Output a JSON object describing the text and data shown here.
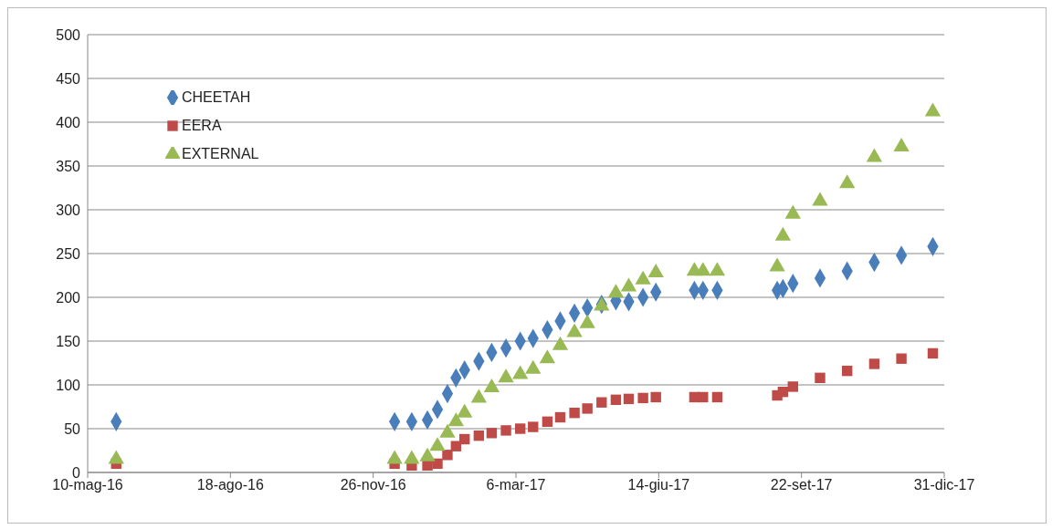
{
  "chart_data": {
    "type": "scatter",
    "x": [
      "2016-05-30",
      "2016-12-11",
      "2016-12-23",
      "2017-01-03",
      "2017-01-10",
      "2017-01-17",
      "2017-01-23",
      "2017-01-29",
      "2017-02-08",
      "2017-02-17",
      "2017-02-27",
      "2017-03-09",
      "2017-03-18",
      "2017-03-28",
      "2017-04-06",
      "2017-04-16",
      "2017-04-25",
      "2017-05-05",
      "2017-05-15",
      "2017-05-24",
      "2017-06-03",
      "2017-06-12",
      "2017-07-09",
      "2017-07-15",
      "2017-07-25",
      "2017-09-05",
      "2017-09-09",
      "2017-09-16",
      "2017-10-05",
      "2017-10-24",
      "2017-11-12",
      "2017-12-01",
      "2017-12-23"
    ],
    "series": [
      {
        "name": "CHEETAH",
        "color": "#4a7ebb",
        "marker": "diamond",
        "values": [
          58,
          58,
          58,
          60,
          72,
          90,
          108,
          117,
          127,
          137,
          142,
          150,
          153,
          163,
          173,
          182,
          188,
          192,
          196,
          195,
          200,
          206,
          208,
          208,
          208,
          208,
          210,
          216,
          222,
          230,
          240,
          248,
          258
        ]
      },
      {
        "name": "EERA",
        "color": "#be4b48",
        "marker": "square",
        "values": [
          10,
          10,
          8,
          8,
          10,
          20,
          30,
          38,
          42,
          45,
          48,
          50,
          52,
          58,
          63,
          68,
          73,
          80,
          83,
          84,
          85,
          86,
          86,
          86,
          86,
          88,
          92,
          98,
          108,
          116,
          124,
          130,
          136
        ]
      },
      {
        "name": "EXTERNAL",
        "color": "#98b954",
        "marker": "triangle",
        "values": [
          15,
          15,
          15,
          18,
          30,
          45,
          58,
          68,
          85,
          97,
          108,
          112,
          118,
          130,
          145,
          160,
          170,
          190,
          205,
          212,
          220,
          228,
          230,
          230,
          230,
          235,
          270,
          295,
          310,
          330,
          360,
          372,
          412
        ]
      }
    ],
    "xlim": [
      "2016-05-10",
      "2017-12-31"
    ],
    "xticks": [
      {
        "value": "2016-05-10",
        "label": "10-mag-16"
      },
      {
        "value": "2016-08-18",
        "label": "18-ago-16"
      },
      {
        "value": "2016-11-26",
        "label": "26-nov-16"
      },
      {
        "value": "2017-03-06",
        "label": "6-mar-17"
      },
      {
        "value": "2017-06-14",
        "label": "14-giu-17"
      },
      {
        "value": "2017-09-22",
        "label": "22-set-17"
      },
      {
        "value": "2017-12-31",
        "label": "31-dic-17"
      }
    ],
    "ylim": [
      0,
      500
    ],
    "yticks": [
      0,
      50,
      100,
      150,
      200,
      250,
      300,
      350,
      400,
      450,
      500
    ],
    "grid": "y",
    "legend": "top left"
  }
}
